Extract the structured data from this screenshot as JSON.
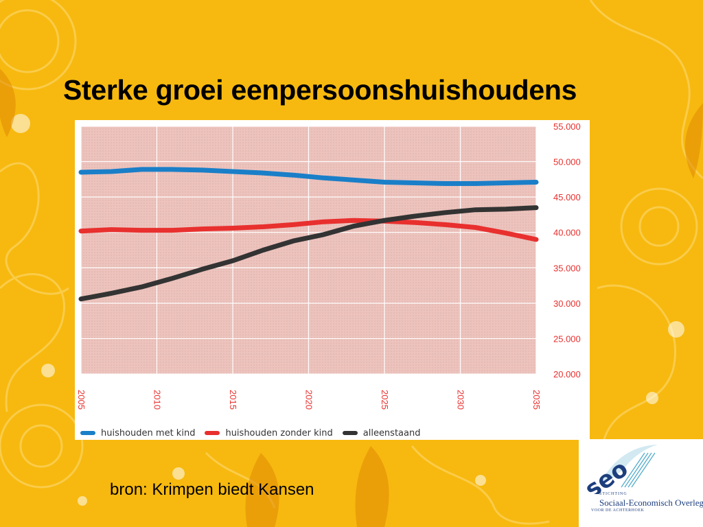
{
  "slide": {
    "title": "Sterke groei eenpersoonshuishoudens",
    "source": "bron: Krimpen biedt Kansen",
    "background_color": "#f7b90f",
    "logo": {
      "letters": "seo",
      "small_label": "STICHTING",
      "name": "Sociaal-Economisch Overleg",
      "sub_label": "VOOR DE ACHTERHOEK",
      "color": "#1d3e7d",
      "accent": "#4aa8c9"
    }
  },
  "chart_data": {
    "type": "line",
    "title": "",
    "xlabel": "",
    "ylabel": "",
    "xlim": [
      2005,
      2035
    ],
    "ylim": [
      20000,
      55000
    ],
    "x_ticks": [
      2005,
      2010,
      2015,
      2020,
      2025,
      2030,
      2035
    ],
    "x_tick_labels": [
      "2005",
      "2010",
      "2015",
      "2020",
      "2025",
      "2030",
      "2035"
    ],
    "y_ticks": [
      20000,
      25000,
      30000,
      35000,
      40000,
      45000,
      50000,
      55000
    ],
    "y_tick_labels": [
      "20.000",
      "25.000",
      "30.000",
      "35.000",
      "40.000",
      "45.000",
      "50.000",
      "55.000"
    ],
    "y_axis_side": "right",
    "grid": true,
    "plot_background": "#ecc3bd",
    "tick_color": "#e8302e",
    "legend_position": "bottom",
    "x": [
      2005,
      2007,
      2009,
      2011,
      2013,
      2015,
      2017,
      2019,
      2021,
      2023,
      2025,
      2027,
      2029,
      2031,
      2033,
      2035
    ],
    "series": [
      {
        "name": "huishouden met kind",
        "color": "#1a7fc8",
        "values": [
          48500,
          48600,
          48900,
          48900,
          48800,
          48600,
          48400,
          48100,
          47700,
          47400,
          47100,
          47000,
          46900,
          46900,
          47000,
          47100
        ]
      },
      {
        "name": "huishouden zonder kind",
        "color": "#e8302e",
        "values": [
          40200,
          40400,
          40300,
          40300,
          40500,
          40600,
          40800,
          41100,
          41500,
          41700,
          41600,
          41400,
          41100,
          40700,
          39900,
          39000
        ]
      },
      {
        "name": "alleenstaand",
        "color": "#333333",
        "values": [
          30600,
          31400,
          32300,
          33500,
          34800,
          36000,
          37500,
          38800,
          39700,
          40900,
          41700,
          42300,
          42800,
          43200,
          43300,
          43500
        ]
      }
    ]
  }
}
